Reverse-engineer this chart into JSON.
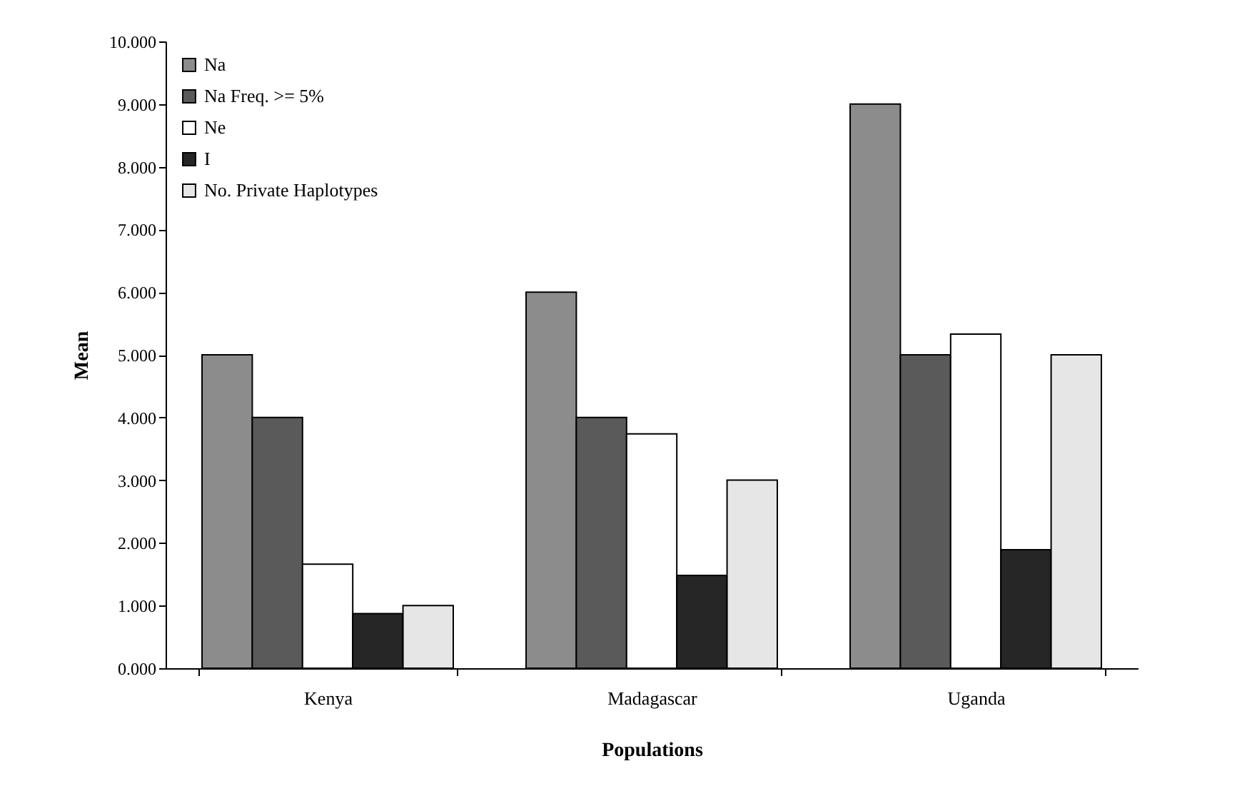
{
  "chart_data": {
    "type": "bar",
    "xlabel": "Populations",
    "ylabel": "Mean",
    "categories": [
      "Kenya",
      "Madagascar",
      "Uganda"
    ],
    "series": [
      {
        "name": "Na",
        "color": "#8c8c8c",
        "values": [
          5,
          6,
          9
        ]
      },
      {
        "name": "Na Freq. >= 5%",
        "color": "#5a5a5a",
        "values": [
          4,
          4,
          5
        ]
      },
      {
        "name": "Ne",
        "color": "#ffffff",
        "values": [
          1.66,
          3.74,
          5.33
        ]
      },
      {
        "name": "I",
        "color": "#262626",
        "values": [
          0.87,
          1.48,
          1.89
        ]
      },
      {
        "name": "No. Private Haplotypes",
        "color": "#e6e6e6",
        "values": [
          1,
          3,
          5
        ]
      }
    ],
    "ylim": [
      0,
      10
    ],
    "yticks": [
      {
        "value": 0,
        "label": "0.000"
      },
      {
        "value": 1,
        "label": "1.000"
      },
      {
        "value": 2,
        "label": "2.000"
      },
      {
        "value": 3,
        "label": "3.000"
      },
      {
        "value": 4,
        "label": "4.000"
      },
      {
        "value": 5,
        "label": "5.000"
      },
      {
        "value": 6,
        "label": "6.000"
      },
      {
        "value": 7,
        "label": "7.000"
      },
      {
        "value": 8,
        "label": "8.000"
      },
      {
        "value": 9,
        "label": "9.000"
      },
      {
        "value": 10,
        "label": "10.000"
      }
    ],
    "legend": "top left"
  }
}
